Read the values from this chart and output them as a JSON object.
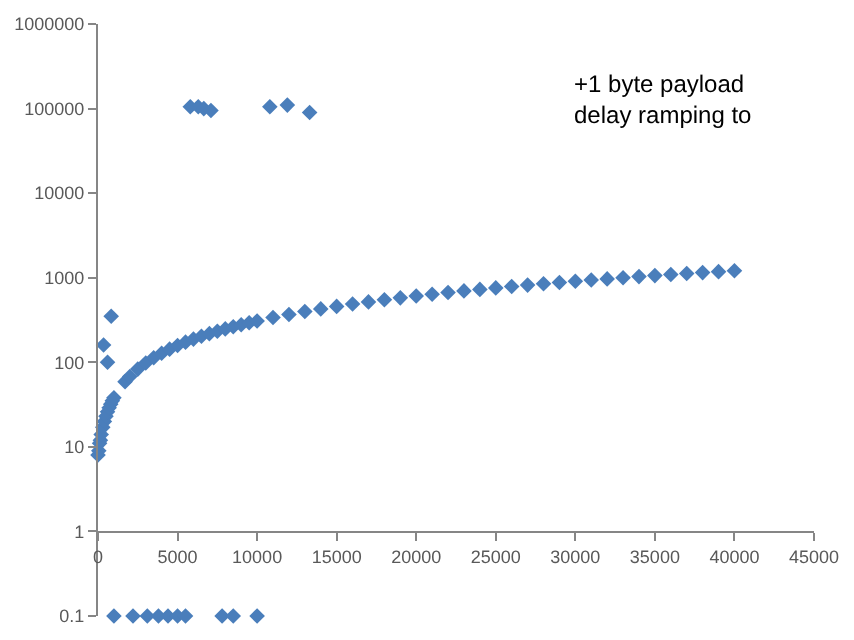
{
  "chart_data": {
    "type": "scatter",
    "log": "y",
    "marker": "diamond",
    "xlim": [
      0,
      45000
    ],
    "xticks": [
      0,
      5000,
      10000,
      15000,
      20000,
      25000,
      30000,
      35000,
      40000,
      45000
    ],
    "ylim": [
      0.1,
      1000000
    ],
    "yticks": [
      0.1,
      1,
      10,
      100,
      1000,
      10000,
      100000,
      1000000
    ],
    "annotations": [
      "+1 byte payload\ndelay ramping to"
    ],
    "series": [
      {
        "color": "#4a7ebb",
        "x": [
          0,
          50,
          100,
          150,
          200,
          300,
          400,
          500,
          600,
          700,
          800,
          900,
          1000,
          1700,
          2000,
          2500,
          3000,
          3500,
          4000,
          4500,
          5000,
          5500,
          6000,
          6500,
          7000,
          7500,
          8000,
          8500,
          9000,
          9500,
          10000,
          11000,
          12000,
          13000,
          14000,
          15000,
          16000,
          17000,
          18000,
          19000,
          20000,
          21000,
          22000,
          23000,
          24000,
          25000,
          26000,
          27000,
          28000,
          29000,
          30000,
          31000,
          32000,
          33000,
          34000,
          35000,
          36000,
          37000,
          38000,
          39000,
          40000,
          350,
          600,
          830,
          5800,
          6300,
          6650,
          7100,
          10800,
          11900,
          13300,
          1000,
          2200,
          3100,
          3800,
          4400,
          5000,
          5500,
          7800,
          8500,
          10000
        ],
        "values": [
          8,
          9,
          11,
          12,
          14,
          17,
          20,
          23,
          26,
          29,
          32,
          35,
          38,
          59,
          68,
          83,
          98,
          113,
          128,
          143,
          158,
          173,
          188,
          203,
          218,
          233,
          248,
          263,
          278,
          293,
          308,
          338,
          368,
          398,
          428,
          458,
          488,
          518,
          548,
          578,
          608,
          638,
          668,
          698,
          728,
          758,
          788,
          818,
          848,
          878,
          908,
          938,
          968,
          1000,
          1030,
          1060,
          1090,
          1120,
          1150,
          1180,
          1210,
          160,
          100,
          350,
          105000,
          105000,
          100000,
          95000,
          105000,
          110000,
          90000,
          0.1,
          0.1,
          0.1,
          0.1,
          0.1,
          0.1,
          0.1,
          0.1,
          0.1,
          0.1
        ]
      }
    ]
  }
}
